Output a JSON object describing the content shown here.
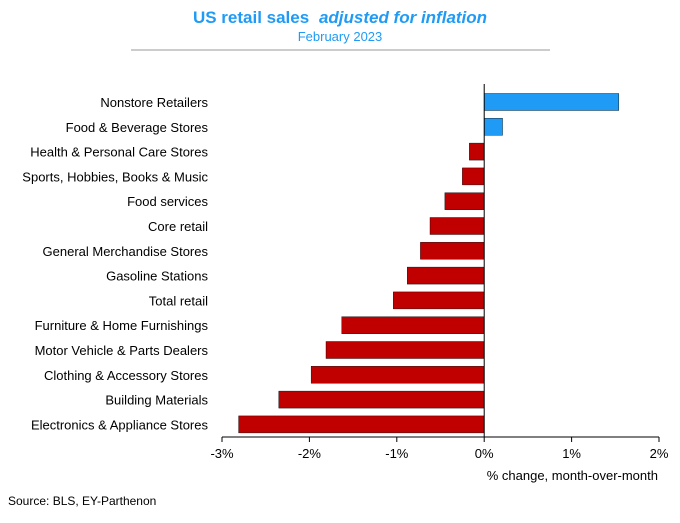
{
  "chart_data": {
    "type": "bar",
    "orientation": "horizontal",
    "title": "US retail sales",
    "title_emphasis": "adjusted for inflation",
    "subtitle": "February 2023",
    "xlabel": "% change, month-over-month",
    "source": "Source: BLS, EY-Parthenon",
    "xlim": [
      -3,
      2
    ],
    "xticks": [
      "-3%",
      "-2%",
      "-1%",
      "0%",
      "1%",
      "2%"
    ],
    "grid": false,
    "categories": [
      "Nonstore Retailers",
      "Food & Beverage Stores",
      "Health & Personal Care Stores",
      "Sports, Hobbies, Books & Music",
      "Food services",
      "Core retail",
      "General Merchandise Stores",
      "Gasoline Stations",
      "Total retail",
      "Furniture & Home Furnishings",
      "Motor Vehicle & Parts Dealers",
      "Clothing & Accessory Stores",
      "Building Materials",
      "Electronics & Appliance Stores"
    ],
    "values": [
      1.54,
      0.21,
      -0.17,
      -0.25,
      -0.45,
      -0.62,
      -0.73,
      -0.88,
      -1.04,
      -1.63,
      -1.81,
      -1.98,
      -2.35,
      -2.81
    ],
    "colors": {
      "positive": "#1F9BF5",
      "negative": "#C00000",
      "title": "#1F9BF5"
    }
  }
}
